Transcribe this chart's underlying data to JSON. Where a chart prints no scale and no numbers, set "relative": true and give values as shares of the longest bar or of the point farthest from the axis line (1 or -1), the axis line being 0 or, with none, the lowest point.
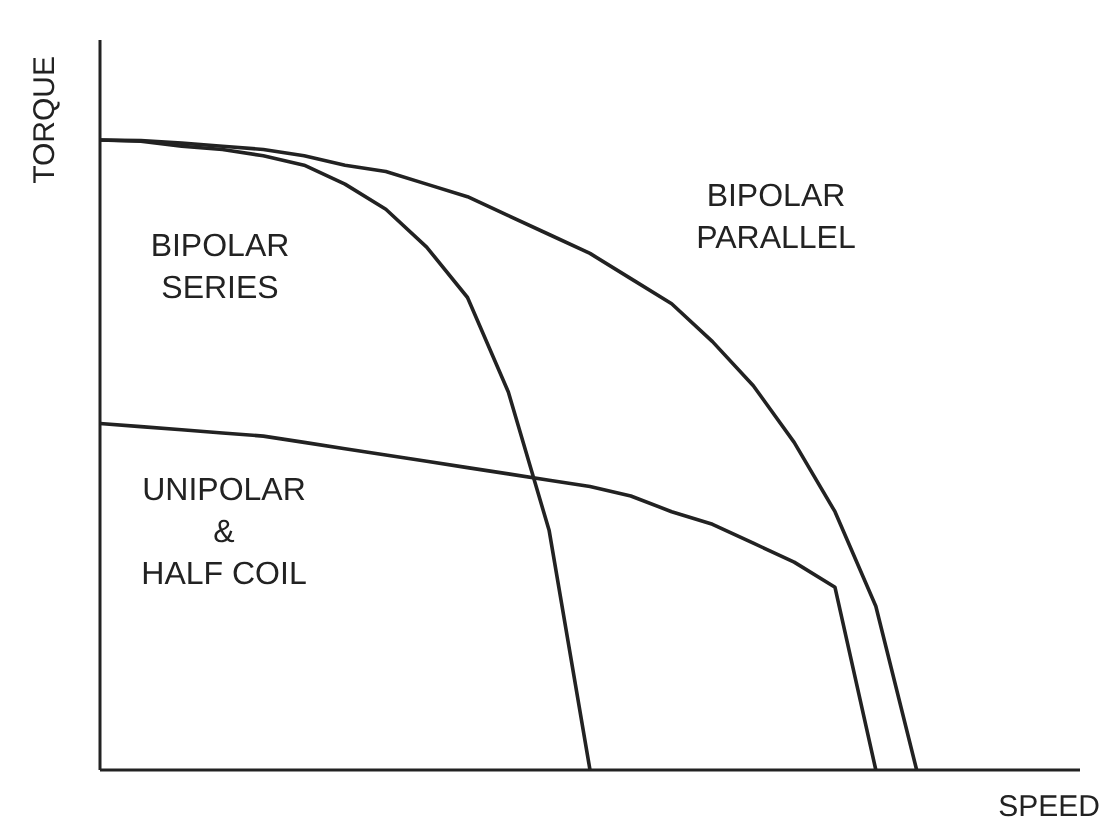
{
  "chart_data": {
    "type": "line",
    "relative": true,
    "xlabel": "SPEED",
    "ylabel": "TORQUE",
    "marker": "none",
    "line_style": "solid",
    "categories": [
      null,
      null,
      null,
      null,
      null,
      null,
      null,
      null,
      null,
      null,
      null,
      null,
      null,
      null,
      null,
      null,
      null,
      null,
      null,
      null,
      null,
      null,
      null,
      null,
      null
    ],
    "series": [
      {
        "name": "BIPOLAR SERIES",
        "color": "#222222",
        "values": [
          1,
          0.998,
          0.99,
          0.985,
          0.975,
          0.96,
          0.93,
          0.89,
          0.83,
          0.75,
          0.6,
          0.38,
          0,
          null,
          null,
          null,
          null,
          null,
          null,
          null,
          null,
          null,
          null,
          null,
          null
        ]
      },
      {
        "name": "BIPOLAR PARALLEL",
        "color": "#222222",
        "values": [
          1,
          0.999,
          0.995,
          0.99,
          0.985,
          0.975,
          0.96,
          0.95,
          0.93,
          0.91,
          0.88,
          0.85,
          0.82,
          0.78,
          0.74,
          0.68,
          0.61,
          0.52,
          0.41,
          0.26,
          0,
          null,
          null,
          null,
          null
        ]
      },
      {
        "name": "UNIPOLAR & HALF COIL",
        "color": "#222222",
        "values": [
          0.55,
          0.545,
          0.54,
          0.535,
          0.53,
          0.52,
          0.51,
          0.5,
          0.49,
          0.48,
          0.47,
          0.46,
          0.45,
          0.435,
          0.41,
          0.39,
          0.36,
          0.33,
          0.29,
          0,
          null,
          null,
          null,
          null,
          null
        ]
      }
    ]
  }
}
